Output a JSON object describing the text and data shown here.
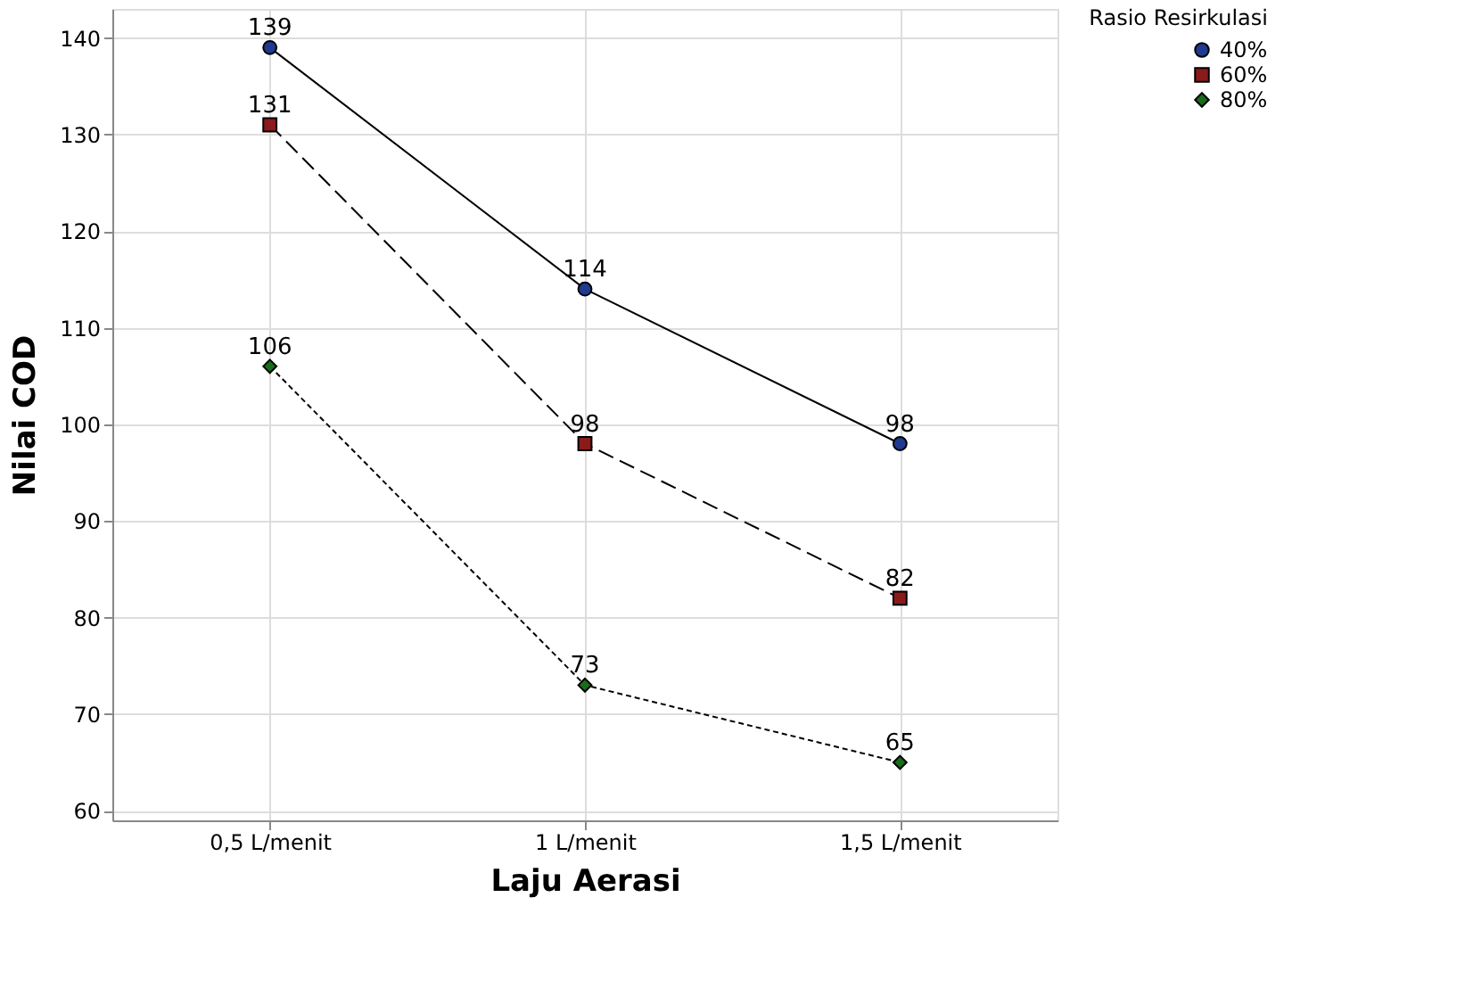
{
  "chart_data": {
    "type": "line",
    "xlabel": "Laju Aerasi",
    "ylabel": "Nilai COD",
    "legend_title": "Rasio Resirkulasi",
    "categories": [
      "0,5 L/menit",
      "1 L/menit",
      "1,5 L/menit"
    ],
    "series": [
      {
        "name": "40%",
        "color": "#1f3a8f",
        "marker": "circle",
        "line_style": "solid",
        "values": [
          139,
          114,
          98
        ]
      },
      {
        "name": "60%",
        "color": "#8b1a1a",
        "marker": "square",
        "line_style": "dashed",
        "values": [
          131,
          98,
          82
        ]
      },
      {
        "name": "80%",
        "color": "#1a6b1a",
        "marker": "diamond",
        "line_style": "dotted",
        "values": [
          106,
          73,
          65
        ]
      }
    ],
    "ylim": [
      59,
      143
    ],
    "yticks": [
      60,
      70,
      80,
      90,
      100,
      110,
      120,
      130,
      140
    ],
    "grid": true,
    "legend": "top right",
    "data_labels": true
  }
}
